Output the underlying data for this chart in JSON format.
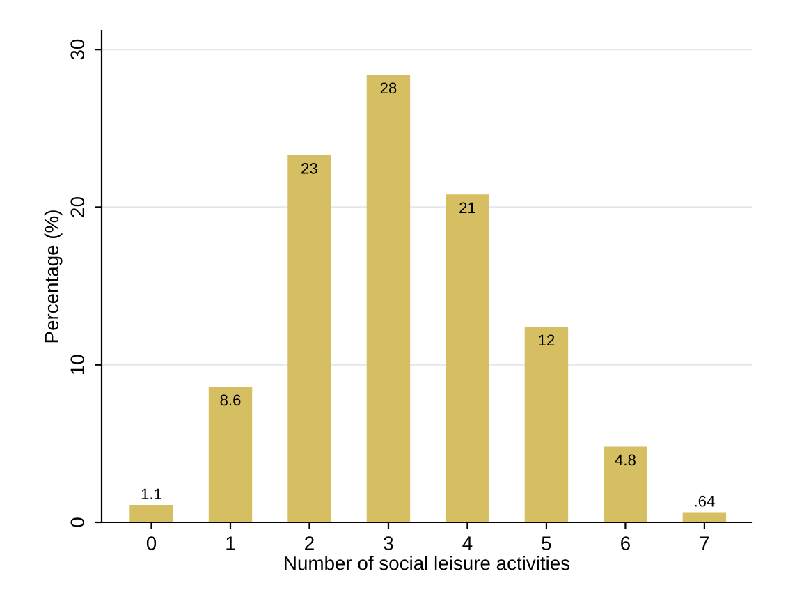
{
  "chart_data": {
    "type": "bar",
    "xlabel": "Number of social leisure activities",
    "ylabel": "Percentage (%)",
    "categories": [
      "0",
      "1",
      "2",
      "3",
      "4",
      "5",
      "6",
      "7"
    ],
    "values": [
      1.1,
      8.6,
      23.3,
      28.4,
      20.8,
      12.4,
      4.8,
      0.64
    ],
    "value_labels": [
      "1.1",
      "8.6",
      "23",
      "28",
      "21",
      "12",
      "4.8",
      ".64"
    ],
    "color": "#d5bf62",
    "ylim": [
      0,
      31.2
    ],
    "yticks": [
      0,
      10,
      20,
      30
    ],
    "grid": "y"
  }
}
